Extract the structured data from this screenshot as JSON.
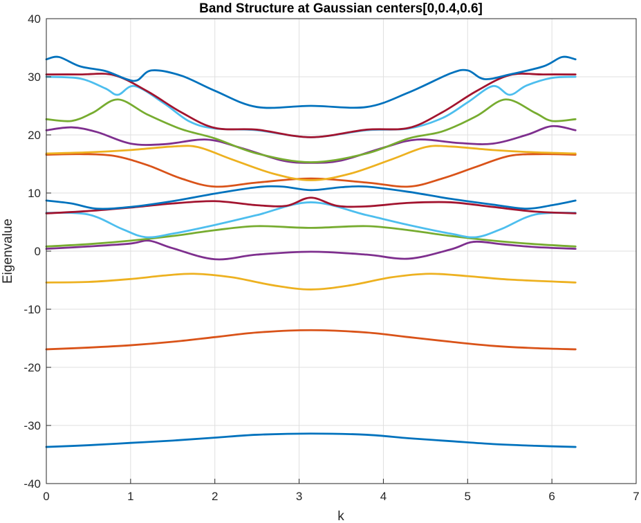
{
  "chart_data": {
    "type": "line",
    "title": "Band Structure at Gaussian centers[0,0.4,0.6]",
    "xlabel": "k",
    "ylabel": "Eigenvalue",
    "xlim": [
      0,
      7
    ],
    "ylim": [
      -40,
      40
    ],
    "xticks": [
      0,
      1,
      2,
      3,
      4,
      5,
      6,
      7
    ],
    "yticks": [
      -40,
      -30,
      -20,
      -10,
      0,
      10,
      20,
      30,
      40
    ],
    "grid": true,
    "legend": "none",
    "series": [
      {
        "color": "#0072BD",
        "x": [
          0,
          0.5,
          1.0,
          1.5,
          2.0,
          2.5,
          3.14,
          3.8,
          4.3,
          4.8,
          5.3,
          5.8,
          6.28
        ],
        "y": [
          -33.7,
          -33.4,
          -33.0,
          -32.6,
          -32.1,
          -31.6,
          -31.4,
          -31.6,
          -32.2,
          -32.7,
          -33.2,
          -33.5,
          -33.7
        ]
      },
      {
        "color": "#D95319",
        "x": [
          0,
          0.5,
          1.0,
          1.5,
          2.0,
          2.5,
          3.14,
          3.8,
          4.3,
          4.8,
          5.3,
          5.8,
          6.28
        ],
        "y": [
          -16.9,
          -16.6,
          -16.2,
          -15.6,
          -14.8,
          -14.0,
          -13.6,
          -14.0,
          -14.8,
          -15.6,
          -16.3,
          -16.7,
          -16.9
        ]
      },
      {
        "color": "#EDB120",
        "x": [
          0,
          0.5,
          1.0,
          1.4,
          1.75,
          2.2,
          2.7,
          3.14,
          3.6,
          4.1,
          4.55,
          5.0,
          5.5,
          6.28
        ],
        "y": [
          -5.4,
          -5.3,
          -4.8,
          -4.2,
          -3.9,
          -4.5,
          -5.9,
          -6.6,
          -5.9,
          -4.5,
          -3.9,
          -4.3,
          -4.9,
          -5.4
        ]
      },
      {
        "color": "#7E2F8E",
        "x": [
          0,
          0.5,
          1.0,
          1.22,
          1.5,
          2.0,
          2.5,
          3.14,
          3.8,
          4.3,
          4.8,
          5.07,
          5.4,
          5.8,
          6.28
        ],
        "y": [
          0.4,
          0.8,
          1.3,
          1.8,
          0.5,
          -1.4,
          -0.6,
          -0.1,
          -0.6,
          -1.3,
          0.3,
          1.6,
          1.2,
          0.7,
          0.4
        ]
      },
      {
        "color": "#77AC30",
        "x": [
          0,
          0.5,
          1.0,
          1.5,
          2.0,
          2.5,
          3.14,
          3.8,
          4.3,
          4.8,
          5.3,
          5.8,
          6.28
        ],
        "y": [
          0.8,
          1.2,
          1.8,
          2.6,
          3.6,
          4.3,
          4.0,
          4.3,
          3.6,
          2.6,
          1.8,
          1.2,
          0.8
        ]
      },
      {
        "color": "#4DBEEE",
        "x": [
          0,
          0.5,
          0.9,
          1.18,
          1.5,
          2.0,
          2.5,
          3.14,
          3.8,
          4.3,
          4.8,
          5.1,
          5.4,
          5.8,
          6.28
        ],
        "y": [
          6.6,
          6.3,
          3.8,
          2.4,
          3.0,
          4.5,
          6.2,
          8.4,
          6.2,
          4.5,
          3.0,
          2.4,
          3.8,
          6.3,
          6.6
        ]
      },
      {
        "color": "#A2142F",
        "x": [
          0,
          0.5,
          1.0,
          1.5,
          2.0,
          2.5,
          2.85,
          3.14,
          3.45,
          3.8,
          4.3,
          4.8,
          5.3,
          5.8,
          6.28
        ],
        "y": [
          6.5,
          6.9,
          7.5,
          8.2,
          8.6,
          7.9,
          7.8,
          9.2,
          7.8,
          7.7,
          8.3,
          8.4,
          7.6,
          6.8,
          6.5
        ]
      },
      {
        "color": "#0072BD",
        "x": [
          0,
          0.3,
          0.6,
          1.0,
          1.5,
          2.0,
          2.5,
          2.8,
          3.14,
          3.5,
          3.8,
          4.3,
          4.8,
          5.3,
          5.7,
          6.0,
          6.28
        ],
        "y": [
          8.7,
          8.2,
          7.3,
          7.6,
          8.6,
          9.9,
          11.0,
          11.1,
          10.5,
          11.0,
          11.1,
          10.2,
          9.0,
          8.0,
          7.3,
          7.9,
          8.7
        ]
      },
      {
        "color": "#D95319",
        "x": [
          0,
          0.4,
          0.8,
          1.2,
          1.6,
          2.0,
          2.5,
          3.14,
          3.8,
          4.3,
          4.7,
          5.1,
          5.5,
          5.9,
          6.28
        ],
        "y": [
          16.6,
          16.7,
          16.4,
          14.8,
          12.5,
          11.1,
          11.8,
          12.5,
          11.8,
          11.1,
          12.5,
          14.5,
          16.4,
          16.7,
          16.6
        ]
      },
      {
        "color": "#EDB120",
        "x": [
          0,
          0.5,
          1.0,
          1.5,
          1.8,
          2.2,
          2.7,
          3.14,
          3.6,
          4.1,
          4.5,
          4.8,
          5.3,
          5.8,
          6.28
        ],
        "y": [
          16.8,
          17.0,
          17.4,
          18.0,
          17.9,
          15.8,
          13.3,
          12.2,
          13.3,
          15.8,
          17.9,
          18.0,
          17.4,
          17.0,
          16.8
        ]
      },
      {
        "color": "#7E2F8E",
        "x": [
          0,
          0.3,
          0.6,
          1.0,
          1.4,
          1.9,
          2.3,
          2.8,
          3.14,
          3.5,
          4.0,
          4.4,
          4.9,
          5.3,
          5.7,
          6.0,
          6.28
        ],
        "y": [
          20.8,
          21.3,
          20.5,
          18.5,
          18.4,
          19.2,
          17.8,
          15.6,
          15.2,
          15.6,
          17.8,
          19.2,
          18.6,
          18.5,
          20.0,
          21.5,
          20.8
        ]
      },
      {
        "color": "#77AC30",
        "x": [
          0,
          0.3,
          0.55,
          0.85,
          1.2,
          1.6,
          2.0,
          2.5,
          3.14,
          3.8,
          4.3,
          4.7,
          5.1,
          5.45,
          5.8,
          6.0,
          6.28
        ],
        "y": [
          22.7,
          22.4,
          23.8,
          26.1,
          23.5,
          21.0,
          19.4,
          16.8,
          15.3,
          16.8,
          19.4,
          20.6,
          23.2,
          26.1,
          23.8,
          22.4,
          22.7
        ]
      },
      {
        "color": "#4DBEEE",
        "x": [
          0,
          0.4,
          0.7,
          0.85,
          1.05,
          1.4,
          1.7,
          2.0,
          2.5,
          3.14,
          3.8,
          4.3,
          4.7,
          5.0,
          5.3,
          5.5,
          5.7,
          6.0,
          6.28
        ],
        "y": [
          30.0,
          29.7,
          28.0,
          26.9,
          28.4,
          25.4,
          22.3,
          21.1,
          20.8,
          19.6,
          20.8,
          21.1,
          22.9,
          25.6,
          28.4,
          26.9,
          28.5,
          29.8,
          30.0
        ]
      },
      {
        "color": "#A2142F",
        "x": [
          0,
          0.4,
          0.8,
          1.2,
          1.6,
          2.0,
          2.5,
          3.14,
          3.8,
          4.3,
          4.7,
          5.1,
          5.5,
          5.9,
          6.28
        ],
        "y": [
          30.4,
          30.4,
          30.3,
          27.5,
          23.9,
          21.2,
          20.9,
          19.6,
          20.9,
          21.2,
          23.9,
          27.5,
          30.3,
          30.4,
          30.4
        ]
      },
      {
        "color": "#0072BD",
        "x": [
          0,
          0.15,
          0.4,
          0.7,
          0.95,
          1.08,
          1.25,
          1.6,
          2.0,
          2.5,
          3.14,
          3.8,
          4.3,
          4.8,
          5.0,
          5.2,
          5.5,
          5.9,
          6.12,
          6.28
        ],
        "y": [
          33.0,
          33.4,
          31.8,
          31.0,
          29.6,
          29.4,
          31.1,
          30.2,
          27.6,
          24.8,
          25.0,
          24.8,
          27.3,
          30.6,
          31.1,
          29.6,
          30.4,
          31.8,
          33.4,
          33.0
        ]
      }
    ]
  }
}
